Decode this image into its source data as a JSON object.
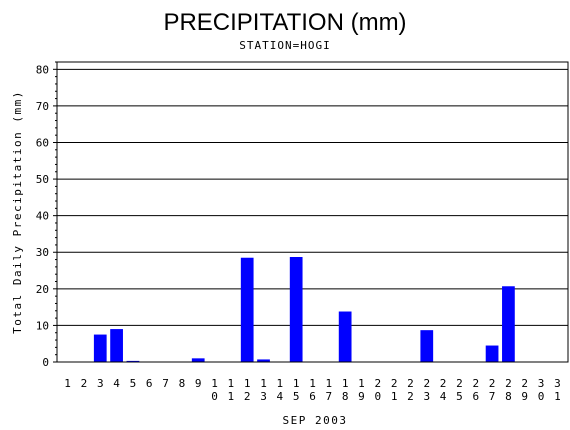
{
  "chart_data": {
    "type": "bar",
    "title": "PRECIPITATION (mm)",
    "subtitle": "STATION=HOGI",
    "xlabel": "SEP 2003",
    "ylabel": "Total Daily Precipitation (mm)",
    "ylim": [
      0,
      82
    ],
    "yticks": [
      0,
      10,
      20,
      30,
      40,
      50,
      60,
      70,
      80
    ],
    "grid": true,
    "bar_color": "#0000ff",
    "categories": [
      "1",
      "2",
      "3",
      "4",
      "5",
      "6",
      "7",
      "8",
      "9",
      "10",
      "11",
      "12",
      "13",
      "14",
      "15",
      "16",
      "17",
      "18",
      "19",
      "20",
      "21",
      "22",
      "23",
      "24",
      "25",
      "26",
      "27",
      "28",
      "29",
      "30",
      "31"
    ],
    "values": [
      0,
      0,
      7.5,
      9,
      0.3,
      0,
      0,
      0,
      1,
      0,
      0,
      28.5,
      0.7,
      0,
      28.7,
      0,
      0,
      13.8,
      0,
      0,
      0,
      0,
      8.7,
      0,
      0,
      0,
      4.5,
      20.7,
      0,
      0,
      0
    ]
  }
}
